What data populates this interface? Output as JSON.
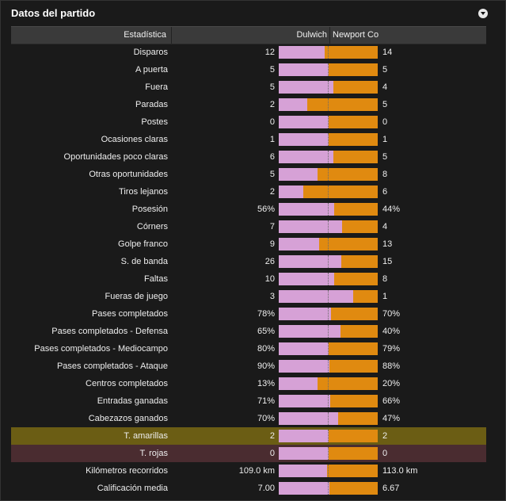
{
  "title": "Datos del partido",
  "header": {
    "stat": "Estadística",
    "home": "Dulwich",
    "away": "Newport Co"
  },
  "colors": {
    "home_bar": "#d6a1d6",
    "away_bar": "#e08a10",
    "yellow_row": "#6b5d14",
    "red_row": "#4a2c30"
  },
  "rows": [
    {
      "label": "Disparos",
      "home": "12",
      "away": "14",
      "home_share": 0.46
    },
    {
      "label": "A puerta",
      "home": "5",
      "away": "5",
      "home_share": 0.5
    },
    {
      "label": "Fuera",
      "home": "5",
      "away": "4",
      "home_share": 0.55
    },
    {
      "label": "Paradas",
      "home": "2",
      "away": "5",
      "home_share": 0.29
    },
    {
      "label": "Postes",
      "home": "0",
      "away": "0",
      "home_share": 0.5
    },
    {
      "label": "Ocasiones claras",
      "home": "1",
      "away": "1",
      "home_share": 0.5
    },
    {
      "label": "Oportunidades poco claras",
      "home": "6",
      "away": "5",
      "home_share": 0.55
    },
    {
      "label": "Otras oportunidades",
      "home": "5",
      "away": "8",
      "home_share": 0.39
    },
    {
      "label": "Tiros lejanos",
      "home": "2",
      "away": "6",
      "home_share": 0.25
    },
    {
      "label": "Posesión",
      "home": "56%",
      "away": "44%",
      "home_share": 0.56
    },
    {
      "label": "Córners",
      "home": "7",
      "away": "4",
      "home_share": 0.64
    },
    {
      "label": "Golpe franco",
      "home": "9",
      "away": "13",
      "home_share": 0.41
    },
    {
      "label": "S. de banda",
      "home": "26",
      "away": "15",
      "home_share": 0.63
    },
    {
      "label": "Faltas",
      "home": "10",
      "away": "8",
      "home_share": 0.56
    },
    {
      "label": "Fueras de juego",
      "home": "3",
      "away": "1",
      "home_share": 0.75
    },
    {
      "label": "Pases completados",
      "home": "78%",
      "away": "70%",
      "home_share": 0.53
    },
    {
      "label": "Pases completados - Defensa",
      "home": "65%",
      "away": "40%",
      "home_share": 0.62
    },
    {
      "label": "Pases completados - Mediocampo",
      "home": "80%",
      "away": "79%",
      "home_share": 0.5
    },
    {
      "label": "Pases completados - Ataque",
      "home": "90%",
      "away": "88%",
      "home_share": 0.51
    },
    {
      "label": "Centros completados",
      "home": "13%",
      "away": "20%",
      "home_share": 0.39
    },
    {
      "label": "Entradas ganadas",
      "home": "71%",
      "away": "66%",
      "home_share": 0.52
    },
    {
      "label": "Cabezazos ganados",
      "home": "70%",
      "away": "47%",
      "home_share": 0.6
    },
    {
      "label": "T. amarillas",
      "home": "2",
      "away": "2",
      "home_share": 0.5,
      "highlight": "yellow"
    },
    {
      "label": "T. rojas",
      "home": "0",
      "away": "0",
      "home_share": 0.5,
      "highlight": "red"
    },
    {
      "label": "Kilómetros recorridos",
      "home": "109.0 km",
      "away": "113.0 km",
      "home_share": 0.49
    },
    {
      "label": "Calificación media",
      "home": "7.00",
      "away": "6.67",
      "home_share": 0.51
    }
  ]
}
